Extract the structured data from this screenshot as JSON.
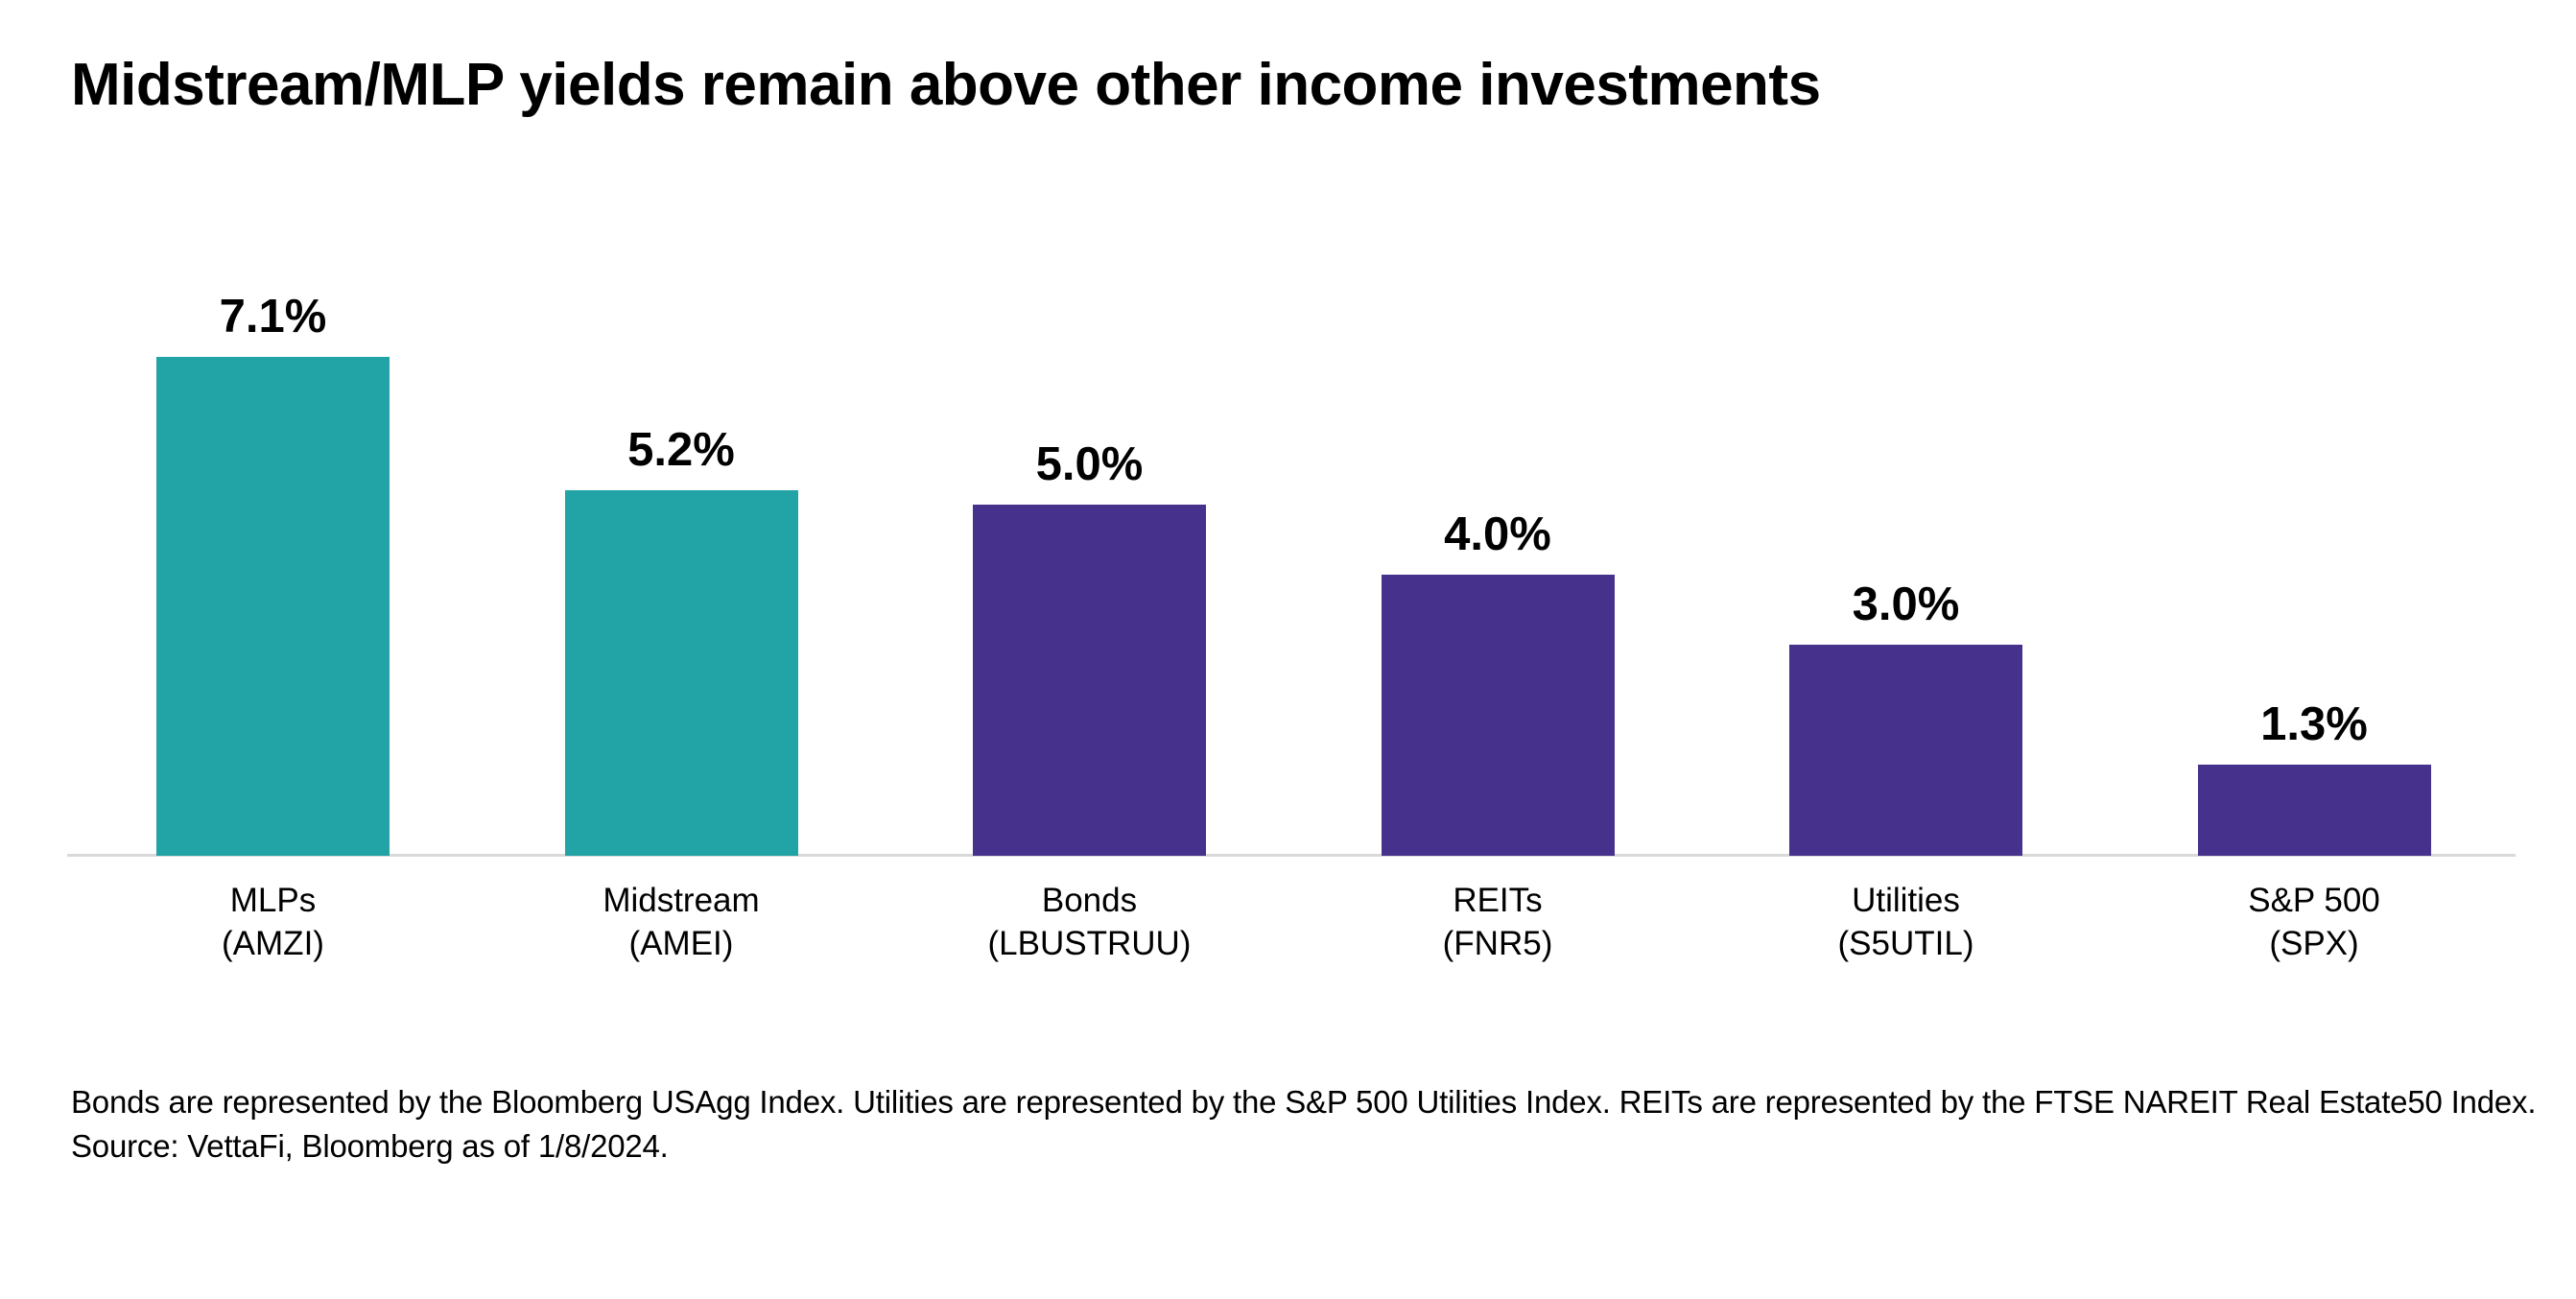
{
  "page": {
    "background_color": "#FFFFFF",
    "text_color": "#000000"
  },
  "header": {
    "title": "Midstream/MLP yields remain above other income investments"
  },
  "chart_data": {
    "type": "bar",
    "title": "Midstream/MLP yields remain above other income investments",
    "categories": [
      "MLPs (AMZI)",
      "Midstream (AMEI)",
      "Bonds (LBUSTRUU)",
      "REITs (FNR5)",
      "Utilities (S5UTIL)",
      "S&P 500 (SPX)"
    ],
    "points": [
      {
        "label_line1": "MLPs",
        "label_line2": "(AMZI)",
        "value": 7.1,
        "display_value": "7.1%",
        "color": "#22A4A7"
      },
      {
        "label_line1": "Midstream",
        "label_line2": "(AMEI)",
        "value": 5.2,
        "display_value": "5.2%",
        "color": "#22A4A7"
      },
      {
        "label_line1": "Bonds",
        "label_line2": "(LBUSTRUU)",
        "value": 5.0,
        "display_value": "5.0%",
        "color": "#46318C"
      },
      {
        "label_line1": "REITs",
        "label_line2": "(FNR5)",
        "value": 4.0,
        "display_value": "4.0%",
        "color": "#46318C"
      },
      {
        "label_line1": "Utilities",
        "label_line2": "(S5UTIL)",
        "value": 3.0,
        "display_value": "3.0%",
        "color": "#46318C"
      },
      {
        "label_line1": "S&P 500",
        "label_line2": "(SPX)",
        "value": 1.3,
        "display_value": "1.3%",
        "color": "#46318C"
      }
    ],
    "xlabel": "",
    "ylabel": "",
    "unit": "%",
    "ylim": [
      0,
      7.5
    ],
    "grid": false,
    "legend": "none",
    "value_labels_position": "above-bars",
    "axis_line_color": "#D9D9D9",
    "bar_colors": {
      "teal": "#22A4A7",
      "purple": "#46318C"
    }
  },
  "footnote": {
    "definitions": "Bonds are represented by the Bloomberg USAgg Index. Utilities are represented by the S&P 500 Utilities Index. REITs are represented by the FTSE NAREIT Real Estate50 Index.",
    "source": "Source: VettaFi, Bloomberg as of 1/8/2024."
  }
}
